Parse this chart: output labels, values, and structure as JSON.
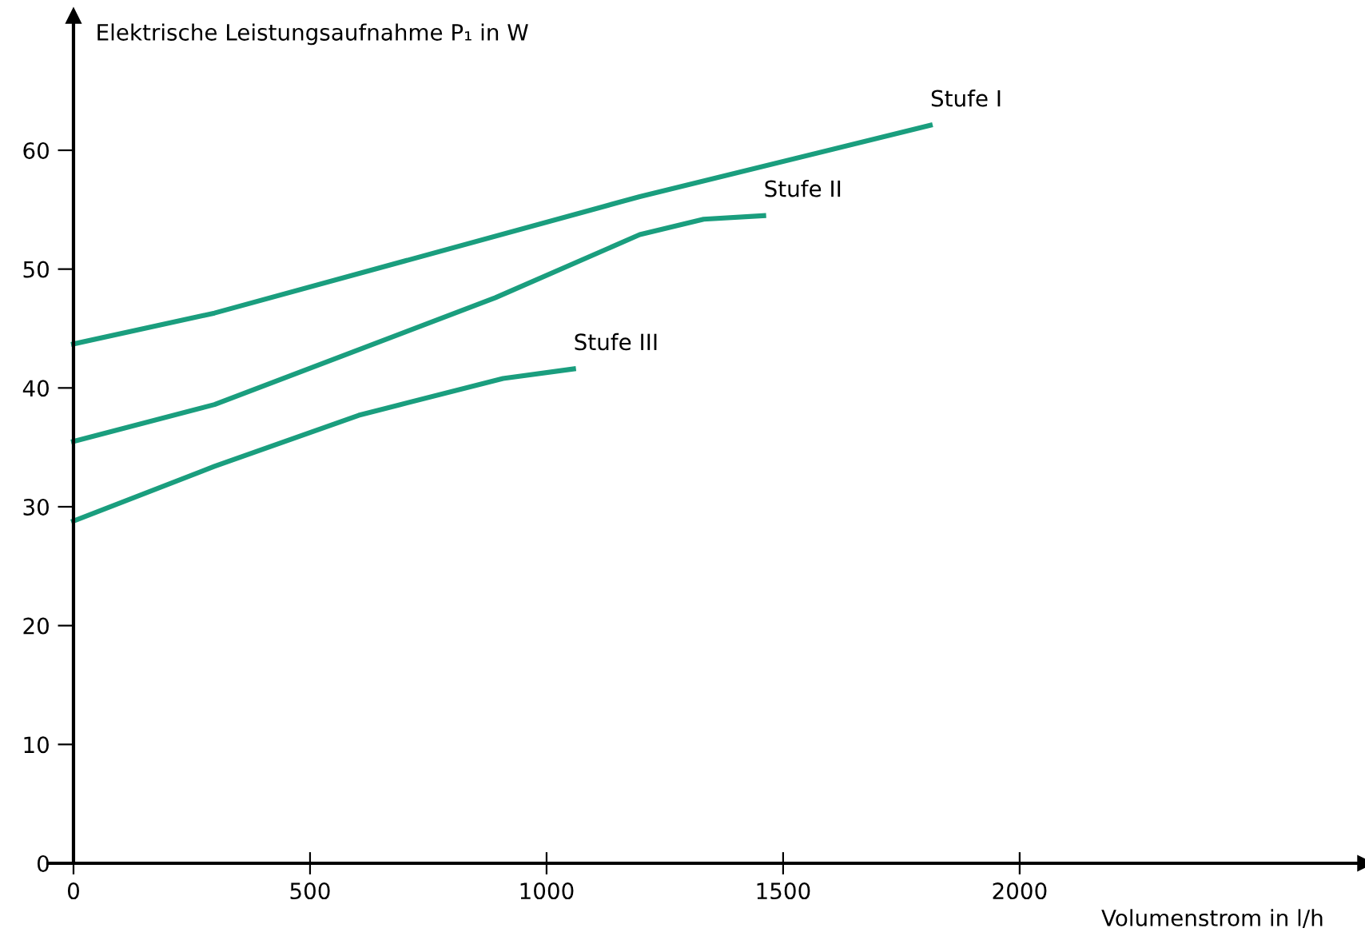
{
  "chart_data": {
    "type": "line",
    "xlabel": "Volumenstrom in l/h",
    "ylabel": "Elektrische Leistungsaufnahme P₁ in W",
    "xlim": [
      -54,
      2730
    ],
    "ylim": [
      0,
      71.3
    ],
    "xticks": [
      0,
      500,
      1000,
      1500,
      2000
    ],
    "yticks": [
      0,
      10,
      20,
      30,
      40,
      50,
      60
    ],
    "grid": false,
    "legend": false,
    "marker": "none",
    "line_style": "solid",
    "series": [
      {
        "name": "Stufe I",
        "color": "#1a9e7e",
        "x": [
          0,
          298,
          1197,
          1811
        ],
        "values": [
          43.7,
          46.3,
          56.1,
          62.1
        ]
      },
      {
        "name": "Stufe II",
        "color": "#1a9e7e",
        "x": [
          0,
          298,
          892,
          1197,
          1332,
          1459
        ],
        "values": [
          35.5,
          38.6,
          47.6,
          52.9,
          54.2,
          54.5
        ]
      },
      {
        "name": "Stufe III",
        "color": "#1a9e7e",
        "x": [
          0,
          298,
          603,
          908,
          1057
        ],
        "values": [
          28.8,
          33.4,
          37.7,
          40.8,
          41.6
        ]
      }
    ]
  }
}
